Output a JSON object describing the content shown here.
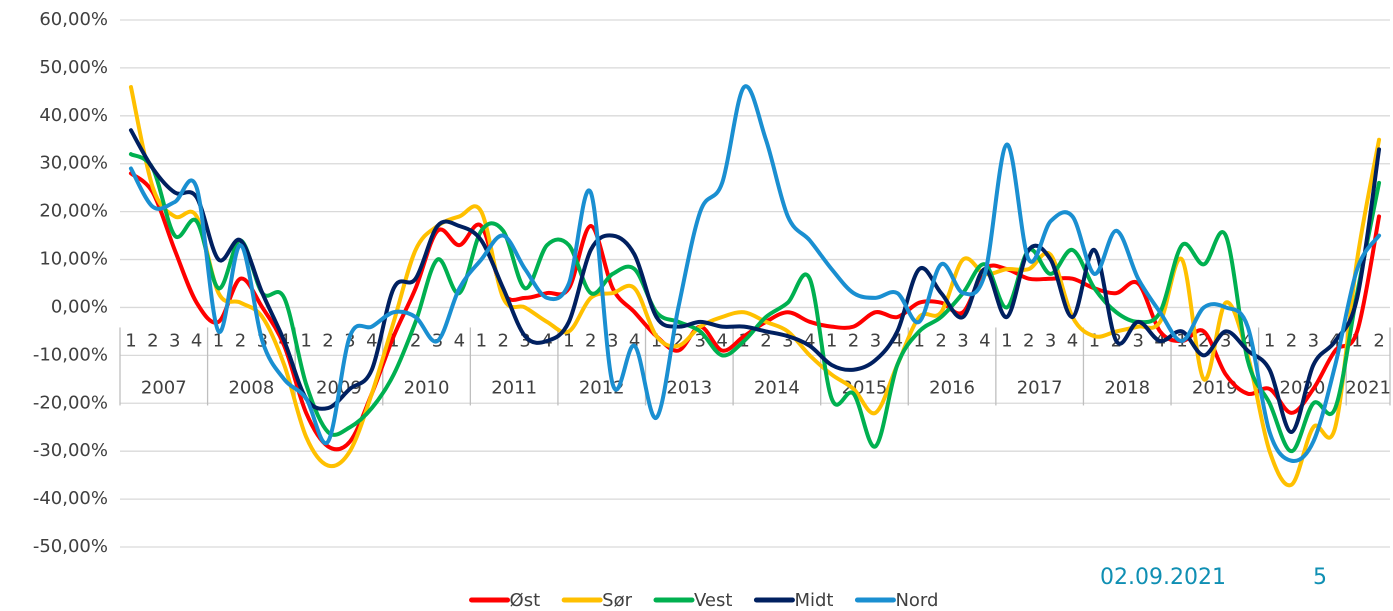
{
  "chart_data": {
    "type": "line",
    "categories": [
      "1",
      "2",
      "3",
      "4",
      "1",
      "2",
      "3",
      "4",
      "1",
      "2",
      "3",
      "4",
      "1",
      "2",
      "3",
      "4",
      "1",
      "2",
      "3",
      "4",
      "1",
      "2",
      "3",
      "4",
      "1",
      "2",
      "3",
      "4",
      "1",
      "2",
      "3",
      "4",
      "1",
      "2",
      "3",
      "4",
      "1",
      "2",
      "3",
      "4",
      "1",
      "2",
      "3",
      "4",
      "1",
      "2",
      "3",
      "4",
      "1",
      "2",
      "3",
      "4",
      "1",
      "2",
      "3",
      "4",
      "1",
      "2"
    ],
    "year_labels": [
      "2007",
      "2008",
      "2009",
      "2010",
      "2011",
      "2012",
      "2013",
      "2014",
      "2015",
      "2016",
      "2017",
      "2018",
      "2019",
      "2020",
      "2021"
    ],
    "ylim": [
      -50,
      60
    ],
    "yticks": [
      {
        "value": -50,
        "label": "-50,00%"
      },
      {
        "value": -40,
        "label": "-40,00%"
      },
      {
        "value": -30,
        "label": "-30,00%"
      },
      {
        "value": -20,
        "label": "-20,00%"
      },
      {
        "value": -10,
        "label": "-10,00%"
      },
      {
        "value": 0,
        "label": "0,00%"
      },
      {
        "value": 10,
        "label": "10,00%"
      },
      {
        "value": 20,
        "label": "20,00%"
      },
      {
        "value": 30,
        "label": "30,00%"
      },
      {
        "value": 40,
        "label": "40,00%"
      },
      {
        "value": 50,
        "label": "50,00%"
      },
      {
        "value": 60,
        "label": "60,00%"
      }
    ],
    "grid": true,
    "legend": "bottom",
    "series": [
      {
        "name": "Øst",
        "color": "#ff0000",
        "values": [
          28,
          24,
          12,
          1,
          -3,
          6,
          0,
          -8,
          -22,
          -29,
          -28,
          -18,
          -6,
          4,
          16,
          13,
          17,
          3,
          2,
          3,
          4,
          17,
          4,
          -1,
          -6,
          -9,
          -4,
          -9,
          -6,
          -3,
          -1,
          -3,
          -4,
          -4,
          -1,
          -2,
          1,
          1,
          -1,
          8,
          8,
          6,
          6,
          6,
          4,
          3,
          5,
          -5,
          -7,
          -5,
          -14,
          -18,
          -17,
          -22,
          -17,
          -9,
          -5,
          19
        ]
      },
      {
        "name": "Sør",
        "color": "#ffc000",
        "values": [
          46,
          25,
          19,
          19,
          3,
          1,
          -2,
          -12,
          -27,
          -33,
          -30,
          -18,
          -3,
          12,
          17,
          19,
          20,
          2,
          0,
          -3,
          -5,
          2,
          3,
          4,
          -6,
          -8,
          -4,
          -2,
          -1,
          -3,
          -5,
          -10,
          -14,
          -17,
          -22,
          -12,
          -2,
          -1,
          10,
          7,
          8,
          8,
          11,
          -2,
          -6,
          -5,
          -4,
          -3,
          10,
          -15,
          1,
          -10,
          -30,
          -37,
          -25,
          -25,
          10,
          35
        ]
      },
      {
        "name": "Vest",
        "color": "#00b050",
        "values": [
          32,
          29,
          15,
          18,
          4,
          14,
          3,
          2,
          -16,
          -26,
          -25,
          -21,
          -14,
          -3,
          10,
          3,
          16,
          16,
          4,
          13,
          13,
          3,
          7,
          8,
          -1,
          -3,
          -5,
          -10,
          -7,
          -2,
          1,
          6,
          -19,
          -18,
          -29,
          -12,
          -5,
          -2,
          3,
          9,
          0,
          12,
          7,
          12,
          4,
          -1,
          -3,
          -1,
          13,
          9,
          15,
          -11,
          -20,
          -30,
          -20,
          -21,
          3,
          26
        ]
      },
      {
        "name": "Midt",
        "color": "#002060",
        "values": [
          37,
          29,
          24,
          23,
          10,
          14,
          3,
          -7,
          -19,
          -21,
          -17,
          -13,
          4,
          6,
          17,
          17,
          14,
          4,
          -6,
          -7,
          -3,
          12,
          15,
          11,
          -2,
          -4,
          -3,
          -4,
          -4,
          -5,
          -6,
          -8,
          -12,
          -13,
          -11,
          -5,
          8,
          3,
          -2,
          8,
          -2,
          12,
          10,
          -2,
          12,
          -7,
          -3,
          -7,
          -5,
          -10,
          -5,
          -9,
          -13,
          -26,
          -12,
          -7,
          2,
          33
        ]
      },
      {
        "name": "Nord",
        "color": "#1a8fd1",
        "values": [
          29,
          21,
          22,
          25,
          -5,
          13,
          -7,
          -15,
          -19,
          -28,
          -6,
          -4,
          -1,
          -2,
          -7,
          4,
          10,
          15,
          8,
          2,
          5,
          24,
          -16,
          -8,
          -23,
          0,
          20,
          26,
          46,
          35,
          19,
          14,
          8,
          3,
          2,
          3,
          -3,
          9,
          3,
          7,
          34,
          10,
          18,
          19,
          7,
          16,
          6,
          -1,
          -7,
          0,
          0,
          -4,
          -26,
          -32,
          -28,
          -12,
          8,
          15
        ]
      }
    ],
    "annotations": [
      "02.09.2021",
      "5"
    ]
  }
}
